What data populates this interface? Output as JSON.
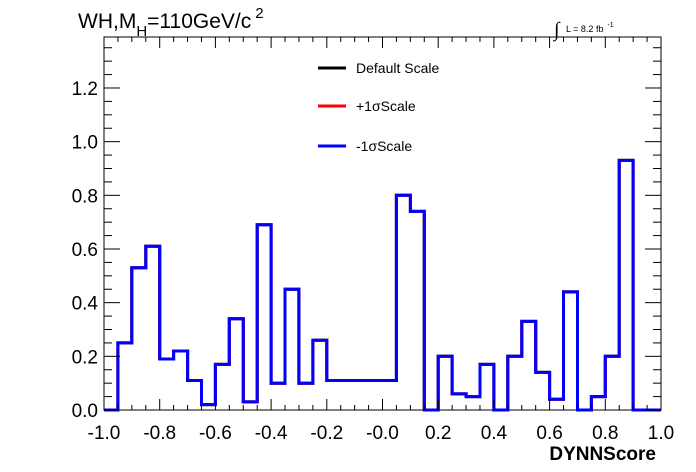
{
  "title": {
    "main": "WH,M",
    "sub": "H",
    "rest": "=110GeV/c",
    "sup": "2"
  },
  "luminosity": {
    "integral_sign": "∫",
    "text": "L = 8.2 fb",
    "sup": "-1"
  },
  "chart_data": {
    "type": "histogram",
    "title": "WH,MH=110GeV/c2",
    "xlabel": "DYNNScore",
    "ylabel": "",
    "xlim": [
      -1.0,
      1.0
    ],
    "ylim": [
      0.0,
      1.39
    ],
    "grid": false,
    "legend_position": "top-center",
    "x_ticks": [
      -1.0,
      -0.8,
      -0.6,
      -0.4,
      -0.2,
      0.0,
      0.2,
      0.4,
      0.6,
      0.8,
      1.0
    ],
    "x_tick_labels": [
      "-1.0",
      "-0.8",
      "-0.6",
      "-0.4",
      "-0.2",
      "-0.0",
      "0.2",
      "0.4",
      "0.6",
      "0.8",
      "1.0"
    ],
    "y_ticks": [
      0.0,
      0.2,
      0.4,
      0.6,
      0.8,
      1.0,
      1.2
    ],
    "y_tick_labels": [
      "0.0",
      "0.2",
      "0.4",
      "0.6",
      "0.8",
      "1.0",
      "1.2"
    ],
    "bin_edges": [
      -1.0,
      -0.95,
      -0.9,
      -0.85,
      -0.8,
      -0.75,
      -0.7,
      -0.65,
      -0.6,
      -0.55,
      -0.5,
      -0.45,
      -0.4,
      -0.35,
      -0.3,
      -0.25,
      -0.2,
      -0.15,
      -0.1,
      -0.05,
      0.0,
      0.05,
      0.1,
      0.15,
      0.2,
      0.25,
      0.3,
      0.35,
      0.4,
      0.45,
      0.5,
      0.55,
      0.6,
      0.65,
      0.7,
      0.75,
      0.8,
      0.85,
      0.9,
      0.95,
      1.0
    ],
    "series": [
      {
        "name": "Default Scale",
        "color": "#000000",
        "values": [
          0.0,
          0.25,
          0.53,
          0.61,
          0.19,
          0.22,
          0.11,
          0.02,
          0.17,
          0.34,
          0.03,
          0.69,
          0.1,
          0.45,
          0.1,
          0.26,
          0.11,
          0.11,
          0.11,
          0.11,
          0.11,
          0.8,
          0.74,
          0.0,
          0.2,
          0.06,
          0.05,
          0.17,
          0.0,
          0.2,
          0.33,
          0.14,
          0.04,
          0.44,
          0.0,
          0.05,
          0.2,
          0.93,
          0.0,
          0.0
        ]
      },
      {
        "name": "+1σScale",
        "color": "#ff0000",
        "values": [
          0.0,
          0.25,
          0.53,
          0.61,
          0.19,
          0.22,
          0.11,
          0.02,
          0.17,
          0.34,
          0.03,
          0.69,
          0.1,
          0.45,
          0.1,
          0.26,
          0.11,
          0.11,
          0.11,
          0.11,
          0.11,
          0.8,
          0.74,
          0.0,
          0.2,
          0.06,
          0.05,
          0.17,
          0.0,
          0.2,
          0.33,
          0.14,
          0.04,
          0.44,
          0.0,
          0.05,
          0.2,
          0.93,
          0.0,
          0.0
        ]
      },
      {
        "name": "-1σScale",
        "color": "#0000ff",
        "values": [
          0.0,
          0.25,
          0.53,
          0.61,
          0.19,
          0.22,
          0.11,
          0.02,
          0.17,
          0.34,
          0.03,
          0.69,
          0.1,
          0.45,
          0.1,
          0.26,
          0.11,
          0.11,
          0.11,
          0.11,
          0.11,
          0.8,
          0.74,
          0.0,
          0.2,
          0.06,
          0.05,
          0.17,
          0.0,
          0.2,
          0.33,
          0.14,
          0.04,
          0.44,
          0.0,
          0.05,
          0.2,
          0.93,
          0.0,
          0.0
        ]
      }
    ]
  }
}
